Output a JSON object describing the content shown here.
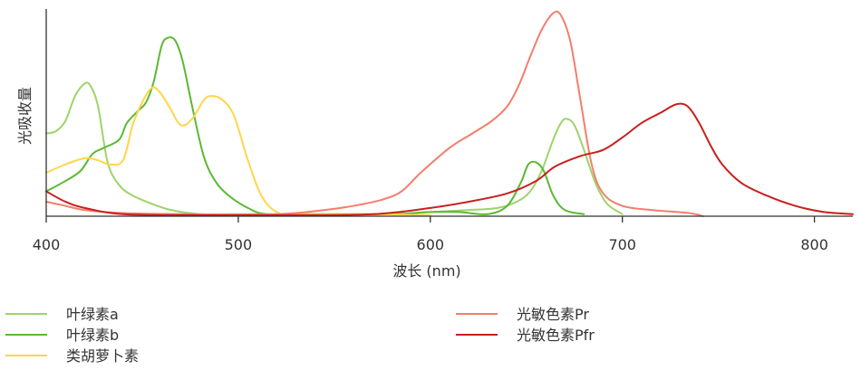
{
  "chart_data": {
    "type": "line",
    "title": "",
    "xlabel": "波长 (nm)",
    "ylabel": "光吸收量",
    "xlim": [
      400,
      820
    ],
    "ylim": [
      0,
      1
    ],
    "xticks": [
      400,
      500,
      600,
      700,
      800
    ],
    "grid": false,
    "legend_position": "bottom",
    "series": [
      {
        "name": "叶绿素a",
        "color": "#9ed46a",
        "points": [
          [
            400,
            0.4
          ],
          [
            405,
            0.41
          ],
          [
            410,
            0.46
          ],
          [
            415,
            0.58
          ],
          [
            420,
            0.64
          ],
          [
            423,
            0.63
          ],
          [
            427,
            0.53
          ],
          [
            432,
            0.26
          ],
          [
            438,
            0.15
          ],
          [
            445,
            0.1
          ],
          [
            455,
            0.06
          ],
          [
            465,
            0.03
          ],
          [
            480,
            0.01
          ],
          [
            500,
            0.01
          ],
          [
            550,
            0.01
          ],
          [
            580,
            0.01
          ],
          [
            600,
            0.02
          ],
          [
            620,
            0.03
          ],
          [
            635,
            0.04
          ],
          [
            645,
            0.07
          ],
          [
            652,
            0.12
          ],
          [
            658,
            0.22
          ],
          [
            664,
            0.37
          ],
          [
            668,
            0.45
          ],
          [
            671,
            0.47
          ],
          [
            675,
            0.44
          ],
          [
            680,
            0.32
          ],
          [
            686,
            0.16
          ],
          [
            692,
            0.06
          ],
          [
            700,
            0.01
          ]
        ]
      },
      {
        "name": "叶绿素b",
        "color": "#5cb833",
        "points": [
          [
            400,
            0.12
          ],
          [
            410,
            0.17
          ],
          [
            418,
            0.22
          ],
          [
            424,
            0.3
          ],
          [
            430,
            0.33
          ],
          [
            438,
            0.37
          ],
          [
            442,
            0.45
          ],
          [
            448,
            0.51
          ],
          [
            452,
            0.55
          ],
          [
            456,
            0.65
          ],
          [
            460,
            0.82
          ],
          [
            463,
            0.86
          ],
          [
            467,
            0.85
          ],
          [
            471,
            0.75
          ],
          [
            476,
            0.53
          ],
          [
            482,
            0.29
          ],
          [
            488,
            0.17
          ],
          [
            495,
            0.1
          ],
          [
            505,
            0.04
          ],
          [
            515,
            0.01
          ],
          [
            540,
            0.01
          ],
          [
            580,
            0.01
          ],
          [
            600,
            0.02
          ],
          [
            615,
            0.02
          ],
          [
            630,
            0.01
          ],
          [
            640,
            0.05
          ],
          [
            647,
            0.16
          ],
          [
            651,
            0.25
          ],
          [
            655,
            0.26
          ],
          [
            659,
            0.22
          ],
          [
            664,
            0.1
          ],
          [
            670,
            0.03
          ],
          [
            680,
            0.01
          ]
        ]
      },
      {
        "name": "类胡萝卜素",
        "color": "#ffd54a",
        "points": [
          [
            400,
            0.21
          ],
          [
            410,
            0.25
          ],
          [
            420,
            0.28
          ],
          [
            427,
            0.27
          ],
          [
            433,
            0.25
          ],
          [
            440,
            0.27
          ],
          [
            445,
            0.44
          ],
          [
            450,
            0.55
          ],
          [
            455,
            0.62
          ],
          [
            459,
            0.6
          ],
          [
            464,
            0.53
          ],
          [
            470,
            0.44
          ],
          [
            476,
            0.47
          ],
          [
            482,
            0.56
          ],
          [
            486,
            0.58
          ],
          [
            492,
            0.56
          ],
          [
            498,
            0.48
          ],
          [
            505,
            0.27
          ],
          [
            512,
            0.1
          ],
          [
            520,
            0.02
          ],
          [
            530,
            0.01
          ],
          [
            570,
            0.01
          ],
          [
            600,
            0.005
          ]
        ]
      },
      {
        "name": "光敏色素Pr",
        "color": "#f47e6c",
        "points": [
          [
            400,
            0.07
          ],
          [
            410,
            0.05
          ],
          [
            420,
            0.03
          ],
          [
            440,
            0.015
          ],
          [
            470,
            0.01
          ],
          [
            520,
            0.01
          ],
          [
            545,
            0.03
          ],
          [
            560,
            0.05
          ],
          [
            575,
            0.08
          ],
          [
            585,
            0.12
          ],
          [
            595,
            0.21
          ],
          [
            610,
            0.33
          ],
          [
            622,
            0.4
          ],
          [
            632,
            0.46
          ],
          [
            640,
            0.53
          ],
          [
            646,
            0.63
          ],
          [
            652,
            0.77
          ],
          [
            658,
            0.9
          ],
          [
            664,
            0.98
          ],
          [
            668,
            0.97
          ],
          [
            673,
            0.84
          ],
          [
            678,
            0.57
          ],
          [
            684,
            0.25
          ],
          [
            690,
            0.11
          ],
          [
            700,
            0.05
          ],
          [
            715,
            0.03
          ],
          [
            735,
            0.015
          ],
          [
            742,
            0.0
          ]
        ]
      },
      {
        "name": "光敏色素Pfr",
        "color": "#c8201e",
        "points": [
          [
            400,
            0.12
          ],
          [
            410,
            0.07
          ],
          [
            420,
            0.04
          ],
          [
            440,
            0.01
          ],
          [
            480,
            0.005
          ],
          [
            520,
            0.005
          ],
          [
            570,
            0.01
          ],
          [
            600,
            0.04
          ],
          [
            620,
            0.07
          ],
          [
            640,
            0.11
          ],
          [
            655,
            0.17
          ],
          [
            665,
            0.24
          ],
          [
            678,
            0.29
          ],
          [
            690,
            0.32
          ],
          [
            700,
            0.38
          ],
          [
            710,
            0.45
          ],
          [
            720,
            0.5
          ],
          [
            728,
            0.54
          ],
          [
            734,
            0.53
          ],
          [
            740,
            0.45
          ],
          [
            746,
            0.34
          ],
          [
            752,
            0.25
          ],
          [
            762,
            0.16
          ],
          [
            775,
            0.1
          ],
          [
            790,
            0.05
          ],
          [
            805,
            0.02
          ],
          [
            820,
            0.01
          ]
        ]
      }
    ]
  }
}
